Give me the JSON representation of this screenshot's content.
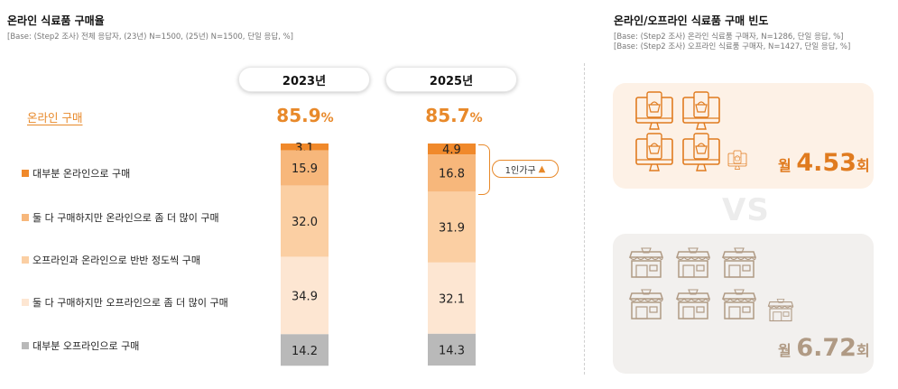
{
  "left": {
    "title": "온라인 식료품 구매율",
    "base": "[Base: (Step2 조사) 전체 응답자, (23년) N=1500, (25년) N=1500, 단일 응답, %]",
    "online_label": "온라인 구매",
    "years": [
      "2023년",
      "2025년"
    ],
    "online_rates": [
      {
        "num": "85.9",
        "unit": "%"
      },
      {
        "num": "85.7",
        "unit": "%"
      }
    ],
    "single_household": {
      "label": "1인가구",
      "arrow": "▲"
    }
  },
  "chart_data": {
    "type": "bar",
    "stacked": true,
    "categories": [
      "2023년",
      "2025년"
    ],
    "series": [
      {
        "name": "대부분 온라인으로 구매",
        "values": [
          3.1,
          4.9
        ],
        "color": "#f0892b",
        "text_color": "#222"
      },
      {
        "name": "둘 다 구매하지만 온라인으로 좀 더 많이 구매",
        "values": [
          15.9,
          16.8
        ],
        "color": "#f7b77b",
        "text_color": "#222"
      },
      {
        "name": "오프라인과 온라인으로 반반 정도씩 구매",
        "values": [
          32.0,
          31.9
        ],
        "color": "#fbcfa3",
        "text_color": "#222"
      },
      {
        "name": "둘 다 구매하지만 오프라인으로 좀 더 많이 구매",
        "values": [
          34.9,
          32.1
        ],
        "color": "#fde6d2",
        "text_color": "#222"
      },
      {
        "name": "대부분 오프라인으로 구매",
        "values": [
          14.2,
          14.3
        ],
        "color": "#b9b9b9",
        "text_color": "#222"
      }
    ],
    "labels": [
      [
        "3.1",
        "15.9",
        "32.0",
        "34.9",
        "14.2"
      ],
      [
        "4.9",
        "16.8",
        "31.9",
        "32.1",
        "14.3"
      ]
    ],
    "ylim": [
      0,
      100
    ]
  },
  "right": {
    "title": "온라인/오프라인 식료품 구매 빈도",
    "base_lines": [
      "[Base: (Step2 조사) 온라인 식료품 구매자, N=1286, 단일 응답, %]",
      "[Base: (Step2 조사) 오프라인 식료품 구매자, N=1427, 단일 응답, %]"
    ],
    "vs": "VS",
    "online": {
      "prefix": "월",
      "value": "4.53",
      "suffix": "회",
      "color": "#e07b1f",
      "icon_count": 4.53,
      "icon": "computer-basket-icon"
    },
    "offline": {
      "prefix": "월",
      "value": "6.72",
      "suffix": "회",
      "color": "#b09a84",
      "icon_count": 6.72,
      "icon": "store-icon"
    }
  }
}
